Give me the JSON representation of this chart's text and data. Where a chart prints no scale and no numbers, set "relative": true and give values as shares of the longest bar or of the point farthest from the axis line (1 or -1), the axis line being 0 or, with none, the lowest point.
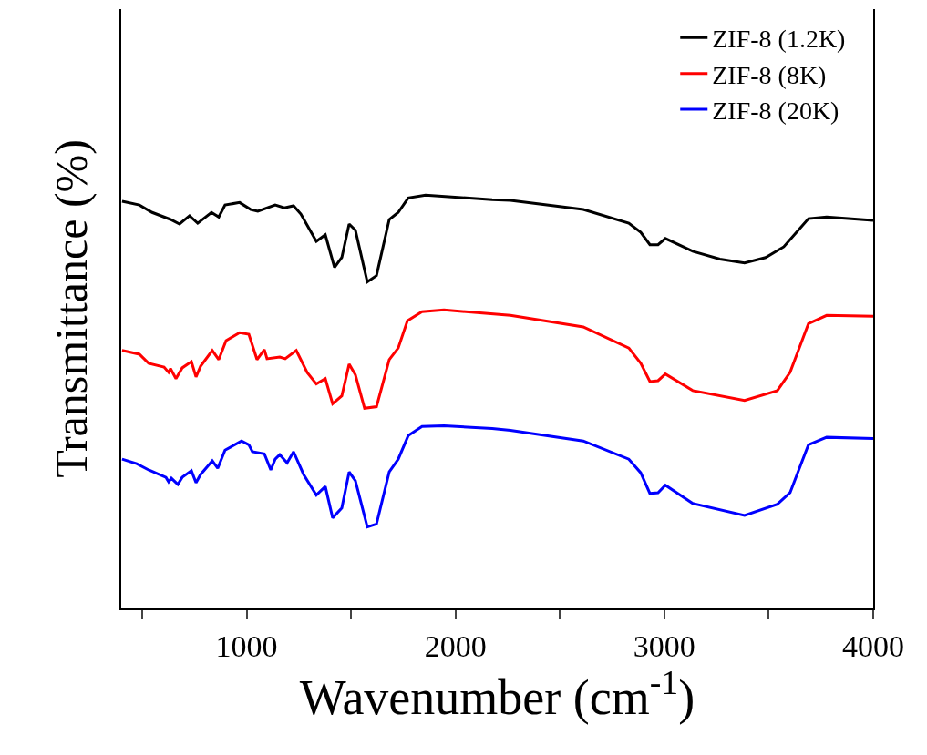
{
  "chart_data": {
    "type": "line",
    "xlabel": "Wavenumber (cm$^{-1}$)",
    "ylabel": "Transmittance (%)",
    "relative": true,
    "xlim": [
      400,
      4000
    ],
    "xticks": [
      {
        "value": 500,
        "label": null
      },
      1000,
      {
        "value": 1500,
        "label": null
      },
      2000,
      {
        "value": 2500,
        "label": null
      },
      3000,
      {
        "value": 3500,
        "label": null
      },
      4000
    ],
    "legend": "top right",
    "marker": "none",
    "line_style": "solid",
    "x": [
      404,
      487,
      548,
      636,
      679,
      727,
      766,
      832,
      867,
      897,
      967,
      1020,
      1054,
      1137,
      1181,
      1225,
      1260,
      1334,
      1377,
      1421,
      1456,
      1491,
      1521,
      1578,
      1622,
      1683,
      1726,
      1774,
      1857,
      2176,
      2263,
      2612,
      2830,
      2887,
      2931,
      2970,
      3005,
      3136,
      3266,
      3384,
      3485,
      3572,
      3690,
      3777,
      4000
    ],
    "series": [
      {
        "name": "ZIF-8 (1.2K)",
        "color": "#000000",
        "values": [
          0.985,
          0.976,
          0.958,
          0.941,
          0.93,
          0.95,
          0.932,
          0.958,
          0.947,
          0.976,
          0.982,
          0.965,
          0.961,
          0.976,
          0.969,
          0.974,
          0.954,
          0.888,
          0.904,
          0.825,
          0.849,
          0.93,
          0.915,
          0.79,
          0.805,
          0.941,
          0.958,
          0.993,
          1.0,
          0.989,
          0.987,
          0.965,
          0.932,
          0.91,
          0.88,
          0.88,
          0.895,
          0.864,
          0.845,
          0.836,
          0.849,
          0.875,
          0.943,
          0.947,
          0.939
        ]
      },
      {
        "name": "ZIF-8 (8K)",
        "color": "#ff0000",
        "x": [
          404,
          487,
          531,
          605,
          627,
          636,
          662,
          692,
          736,
          758,
          780,
          836,
          867,
          902,
          967,
          1011,
          1050,
          1085,
          1098,
          1159,
          1185,
          1238,
          1290,
          1334,
          1377,
          1412,
          1456,
          1491,
          1521,
          1565,
          1622,
          1683,
          1726,
          1770,
          1840,
          1945,
          2263,
          2612,
          2830,
          2887,
          2931,
          2970,
          3005,
          3136,
          3384,
          3541,
          3602,
          3690,
          3777,
          4000
        ],
        "values": [
          0.624,
          0.615,
          0.593,
          0.584,
          0.571,
          0.58,
          0.556,
          0.582,
          0.597,
          0.56,
          0.586,
          0.624,
          0.602,
          0.648,
          0.667,
          0.663,
          0.602,
          0.626,
          0.604,
          0.608,
          0.604,
          0.624,
          0.571,
          0.543,
          0.556,
          0.495,
          0.514,
          0.591,
          0.565,
          0.484,
          0.488,
          0.602,
          0.63,
          0.696,
          0.718,
          0.722,
          0.709,
          0.681,
          0.63,
          0.593,
          0.549,
          0.551,
          0.567,
          0.527,
          0.503,
          0.527,
          0.571,
          0.689,
          0.709,
          0.707
        ]
      },
      {
        "name": "ZIF-8 (20K)",
        "color": "#0000ff",
        "x": [
          404,
          474,
          531,
          614,
          627,
          640,
          671,
          692,
          736,
          758,
          780,
          836,
          862,
          897,
          976,
          1011,
          1028,
          1085,
          1116,
          1137,
          1159,
          1194,
          1225,
          1273,
          1334,
          1377,
          1412,
          1456,
          1491,
          1521,
          1578,
          1622,
          1683,
          1726,
          1774,
          1840,
          1945,
          2176,
          2263,
          2612,
          2830,
          2887,
          2931,
          2970,
          3005,
          3136,
          3384,
          3541,
          3602,
          3690,
          3777,
          4000
        ],
        "values": [
          0.361,
          0.35,
          0.335,
          0.317,
          0.306,
          0.315,
          0.3,
          0.317,
          0.333,
          0.304,
          0.324,
          0.357,
          0.339,
          0.383,
          0.405,
          0.396,
          0.379,
          0.374,
          0.335,
          0.361,
          0.372,
          0.352,
          0.379,
          0.324,
          0.274,
          0.295,
          0.219,
          0.243,
          0.33,
          0.309,
          0.197,
          0.204,
          0.33,
          0.361,
          0.418,
          0.44,
          0.442,
          0.435,
          0.431,
          0.405,
          0.361,
          0.328,
          0.278,
          0.28,
          0.298,
          0.254,
          0.225,
          0.252,
          0.28,
          0.396,
          0.414,
          0.411
        ]
      }
    ]
  }
}
